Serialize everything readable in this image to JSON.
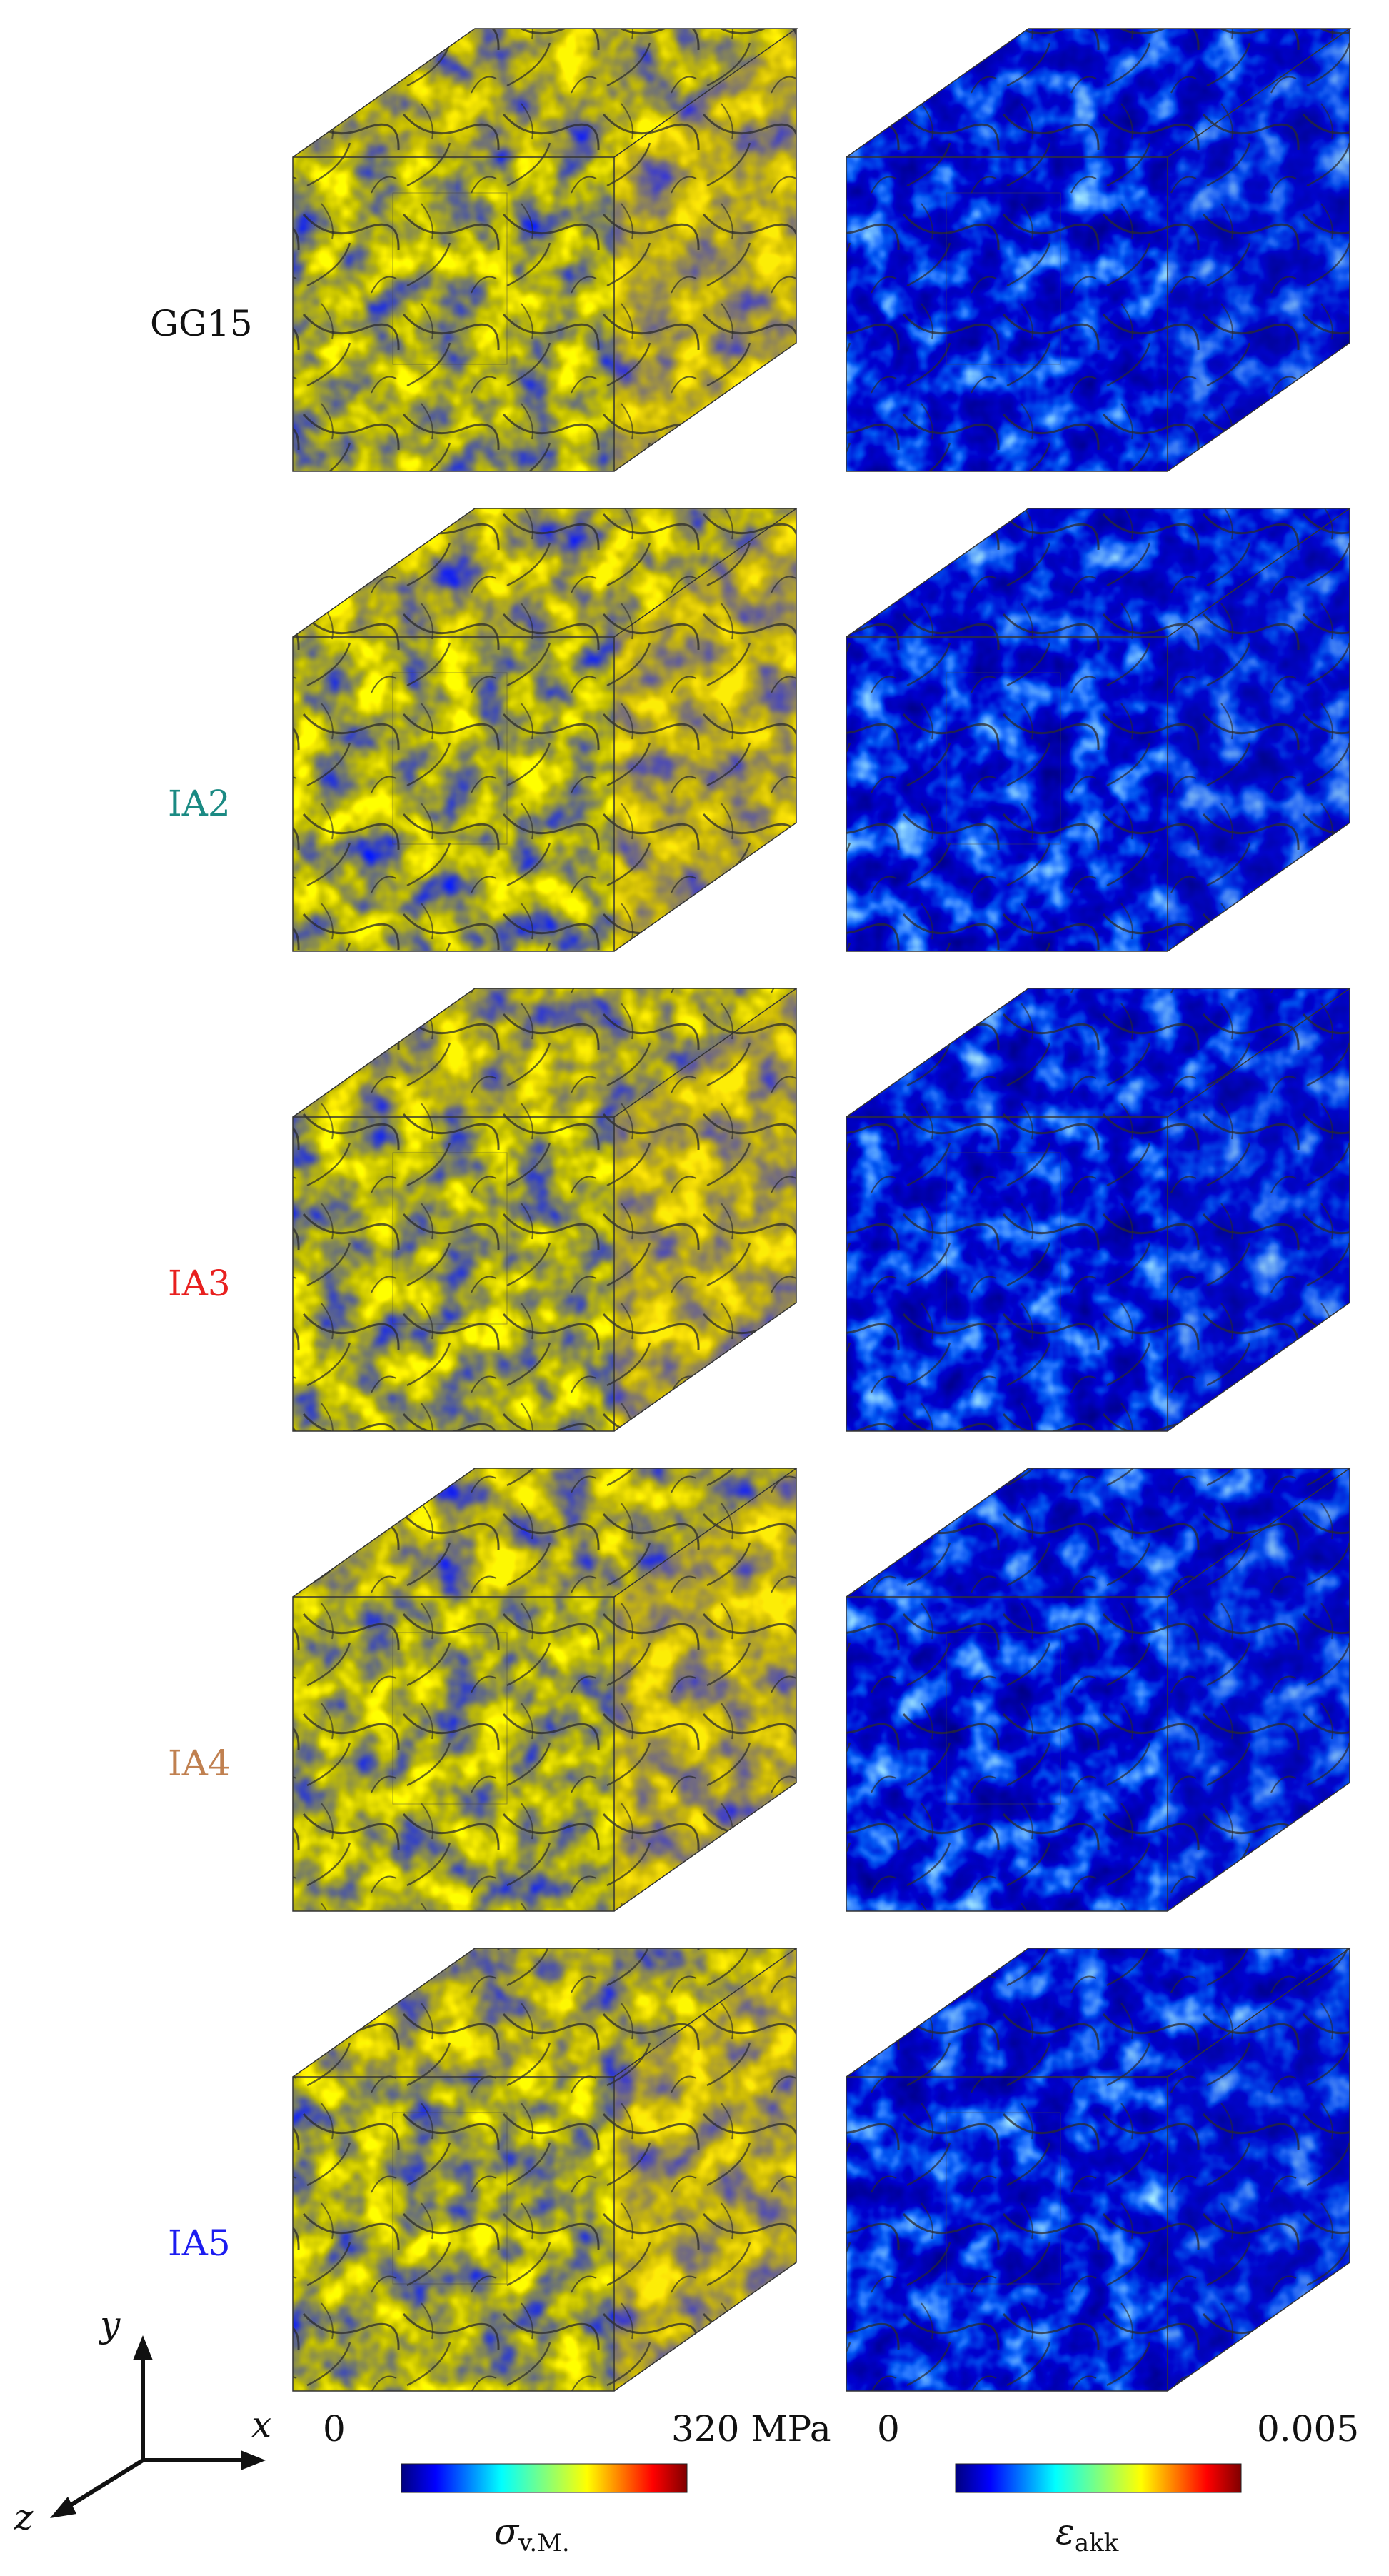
{
  "rows": [
    {
      "label": "GG15",
      "color": "#111111"
    },
    {
      "label": "IA2",
      "color": "#1b8a83"
    },
    {
      "label": "IA3",
      "color": "#e8201f"
    },
    {
      "label": "IA4",
      "color": "#c08050"
    },
    {
      "label": "IA5",
      "color": "#1c1cf0"
    }
  ],
  "colorbars": [
    {
      "min_label": "0",
      "max_label": "320 MPa",
      "title_symbol": "σ",
      "title_sub": "v.M.",
      "colormap": "jet"
    },
    {
      "min_label": "0",
      "max_label": "0.005",
      "title_symbol": "ε",
      "title_sub": "akk",
      "colormap": "jet"
    }
  ],
  "axes": {
    "x": "x",
    "y": "y",
    "z": "z"
  },
  "colors": {
    "jet": [
      "#00007f",
      "#0000ff",
      "#007fff",
      "#00ffff",
      "#7fff7f",
      "#ffff00",
      "#ff7f00",
      "#ff0000",
      "#7f0000"
    ]
  }
}
